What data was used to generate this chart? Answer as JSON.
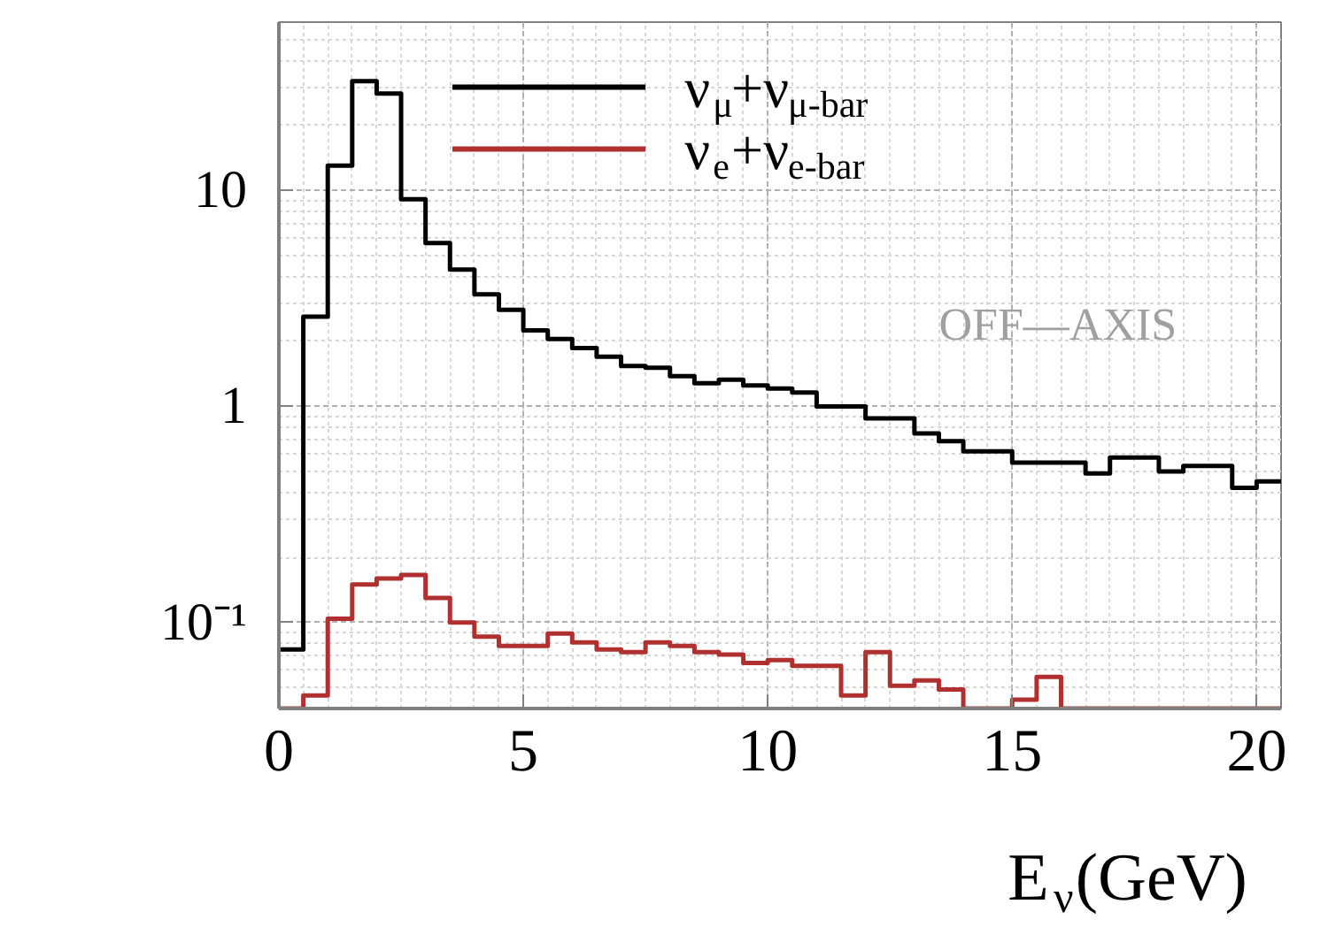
{
  "chart_data": {
    "type": "histogram",
    "xlabel": "E$_{ν}$(GeV)",
    "bins": [
      0,
      0.5,
      1,
      1.5,
      2,
      2.5,
      3,
      3.5,
      4,
      4.5,
      5,
      5.5,
      6,
      6.5,
      7,
      7.5,
      8,
      8.5,
      9,
      9.5,
      10,
      10.5,
      11,
      11.5,
      12,
      12.5,
      13,
      13.5,
      14,
      14.5,
      15,
      15.5,
      16,
      16.5,
      17,
      17.5,
      18,
      18.5,
      19,
      19.5,
      20,
      20.5
    ],
    "series": [
      {
        "name": "ν$_{μ}$+ν$_{μ-bar}$",
        "color": "#000000",
        "values": [
          0.075,
          2.6,
          13,
          32,
          28,
          9.1,
          5.7,
          4.3,
          3.3,
          2.8,
          2.25,
          2.05,
          1.86,
          1.7,
          1.54,
          1.51,
          1.38,
          1.28,
          1.33,
          1.25,
          1.21,
          1.16,
          1.0,
          1.0,
          0.88,
          0.88,
          0.75,
          0.69,
          0.62,
          0.62,
          0.55,
          0.55,
          0.55,
          0.49,
          0.58,
          0.58,
          0.5,
          0.53,
          0.53,
          0.42,
          0.45
        ]
      },
      {
        "name": "ν$_{e}$+ν$_{e-bar}$",
        "color": "#b03030",
        "values": [
          null,
          0.046,
          0.104,
          0.15,
          0.16,
          0.166,
          0.13,
          0.1,
          0.086,
          0.078,
          0.078,
          0.089,
          0.081,
          0.075,
          0.073,
          0.081,
          0.078,
          0.073,
          0.071,
          0.065,
          0.067,
          0.063,
          0.063,
          0.046,
          0.073,
          0.051,
          0.054,
          0.049,
          null,
          null,
          0.044,
          0.056,
          null,
          null,
          null,
          null,
          null,
          null,
          null,
          null,
          null
        ]
      }
    ],
    "annotations": [
      "OFF—AXIS"
    ],
    "log": "y",
    "xlim": [
      0,
      20.5
    ],
    "ylim": [
      0.04,
      60
    ],
    "xticks": [
      0,
      5,
      10,
      15,
      20
    ],
    "yticks": [
      {
        "value": 0.1,
        "label": "10⁻¹"
      },
      1,
      10
    ],
    "grid": true,
    "legend": "top",
    "line_style": "solid"
  }
}
